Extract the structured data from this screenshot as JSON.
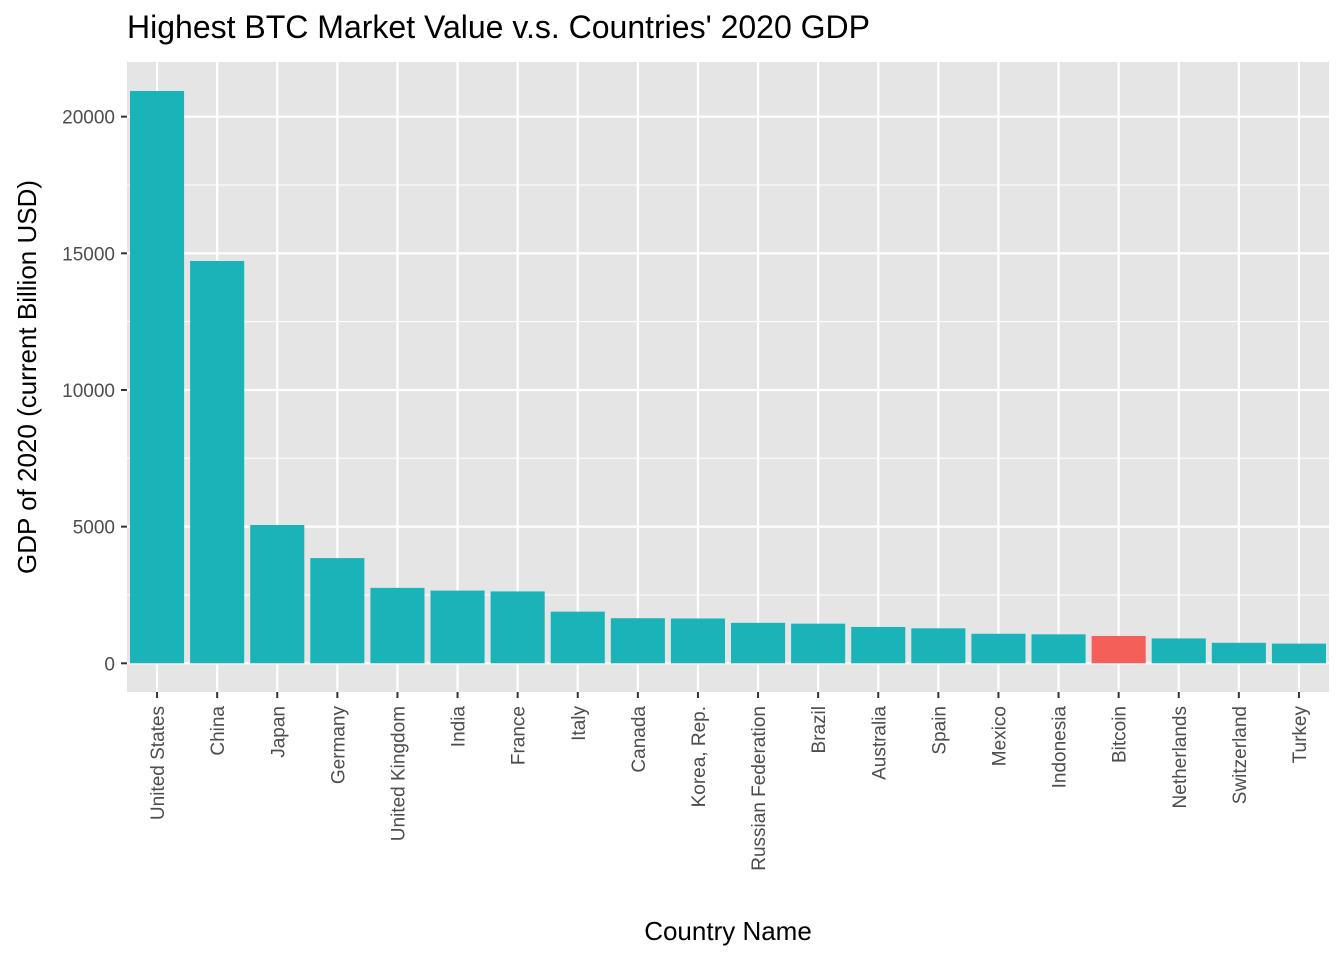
{
  "chart_data": {
    "type": "bar",
    "title": "Highest BTC Market Value v.s. Countries' 2020 GDP",
    "xlabel": "Country Name",
    "ylabel": "GDP of 2020 (current Billion USD)",
    "ylim": [
      -1050,
      22000
    ],
    "yticks": [
      0,
      5000,
      10000,
      15000,
      20000
    ],
    "grid": true,
    "legend": "none",
    "colors": {
      "country": "#1ab4b8",
      "bitcoin": "#f55f5a",
      "panel": "#e5e5e5",
      "grid": "#ffffff"
    },
    "categories": [
      "United States",
      "China",
      "Japan",
      "Germany",
      "United Kingdom",
      "India",
      "France",
      "Italy",
      "Canada",
      "Korea, Rep.",
      "Russian Federation",
      "Brazil",
      "Australia",
      "Spain",
      "Mexico",
      "Indonesia",
      "Bitcoin",
      "Netherlands",
      "Switzerland",
      "Turkey"
    ],
    "values": [
      20940,
      14720,
      5060,
      3850,
      2760,
      2660,
      2630,
      1890,
      1650,
      1640,
      1480,
      1450,
      1330,
      1280,
      1080,
      1060,
      1000,
      910,
      750,
      720
    ],
    "highlight": "Bitcoin"
  }
}
